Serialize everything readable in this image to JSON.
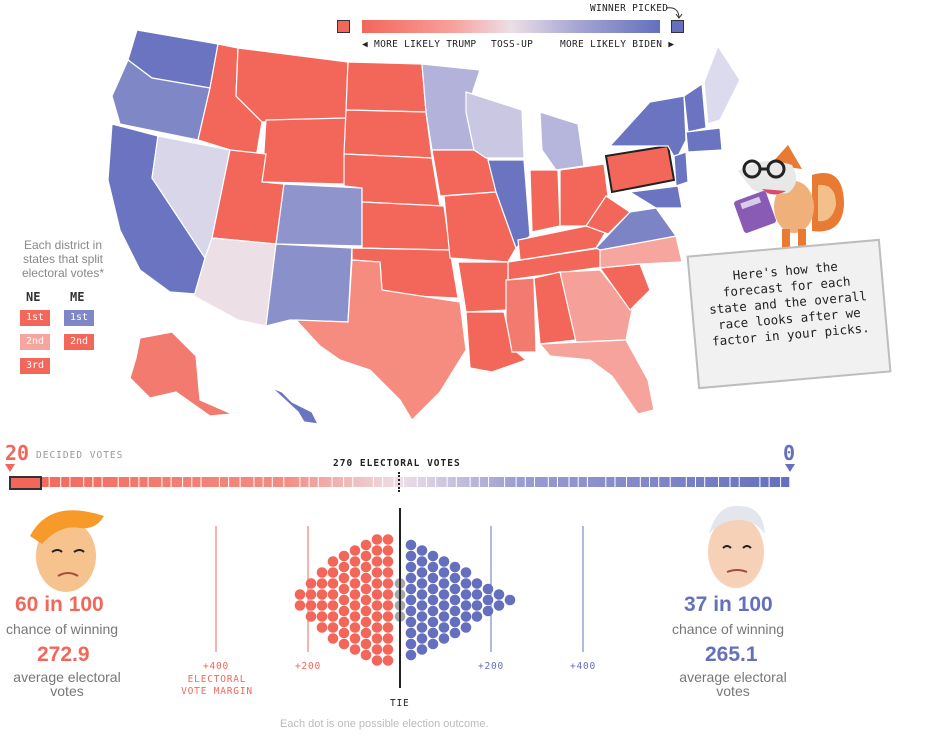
{
  "legend": {
    "winner_picked": "WINNER PICKED",
    "more_likely_trump": "MORE LIKELY TRUMP",
    "toss_up": "TOSS-UP",
    "more_likely_biden": "MORE LIKELY BIDEN"
  },
  "colors": {
    "trump": "#f3665a",
    "trump_light": "#f7a59f",
    "tossup": "#ecdfe6",
    "biden_light": "#a9a9d5",
    "biden": "#6470bd",
    "tie": "#a7a7a7"
  },
  "districts": {
    "caption": "Each district in states that split electoral votes*",
    "ne": {
      "label": "NE",
      "items": [
        "1st",
        "2nd",
        "3rd"
      ]
    },
    "me": {
      "label": "ME",
      "items": [
        "1st",
        "2nd"
      ]
    }
  },
  "mascot": {
    "speech": "Here's how the forecast for each state and the overall race looks after we factor in your picks."
  },
  "electoral_bar": {
    "trump_decided": "20",
    "biden_decided": "0",
    "decided_label": "DECIDED VOTES",
    "threshold_label": "270 ELECTORAL VOTES"
  },
  "trump": {
    "chance": "60 in 100",
    "chance_label": "chance of winning",
    "avg_votes": "272.9",
    "avg_label": "average electoral votes"
  },
  "biden": {
    "chance": "37 in 100",
    "chance_label": "chance of winning",
    "avg_votes": "265.1",
    "avg_label": "average electoral votes"
  },
  "margin_axis": {
    "t400": "+400",
    "t200": "+200",
    "b200": "+200",
    "b400": "+400",
    "caption": "ELECTORAL VOTE MARGIN",
    "tie": "TIE"
  },
  "footnote": "Each dot is one possible election outcome."
}
